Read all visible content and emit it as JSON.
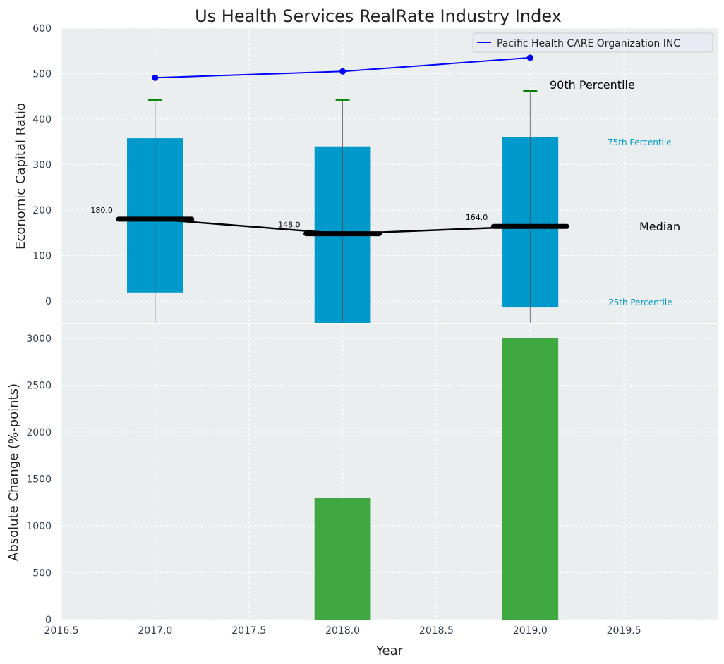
{
  "chart_data": [
    {
      "type": "bar",
      "title": "Us Health Services RealRate Industry Index",
      "xlabel": "",
      "ylabel": "Economic Capital Ratio",
      "xlim": [
        2016.5,
        2020.0
      ],
      "ylim": [
        -48,
        600
      ],
      "xticks": [
        2016.5,
        2017.0,
        2017.5,
        2018.0,
        2018.5,
        2019.0,
        2019.5
      ],
      "yticks": [
        0,
        100,
        200,
        300,
        400,
        500,
        600
      ],
      "grid": true,
      "x": [
        2017,
        2018,
        2019
      ],
      "p25": [
        19,
        -60,
        -14
      ],
      "p75": [
        358,
        340,
        360
      ],
      "median": [
        180,
        148,
        164
      ],
      "median_labels": [
        "180.0",
        "148.0",
        "164.0"
      ],
      "p90": [
        442,
        442,
        462
      ],
      "company": {
        "name": "Pacific Health CARE Organization INC",
        "values": [
          491,
          505,
          535
        ],
        "color": "#0000ff"
      },
      "annotations": {
        "p90": "90th Percentile",
        "p75": "75th Percentile",
        "median": "Median",
        "p25": "25th Percentile"
      },
      "legend": "top-right",
      "box_color": "#0099cc"
    },
    {
      "type": "bar",
      "xlabel": "Year",
      "ylabel": "Absolute Change (%-points)",
      "xlim": [
        2016.5,
        2020.0
      ],
      "ylim": [
        0,
        3150
      ],
      "xticks": [
        "2016.5",
        "2017.0",
        "2017.5",
        "2018.0",
        "2018.5",
        "2019.0",
        "2019.5"
      ],
      "yticks": [
        0,
        500,
        1000,
        1500,
        2000,
        2500,
        3000
      ],
      "grid": true,
      "x": [
        2017,
        2018,
        2019
      ],
      "values": [
        0,
        1300,
        3000
      ],
      "color": "#2ca02c"
    }
  ]
}
